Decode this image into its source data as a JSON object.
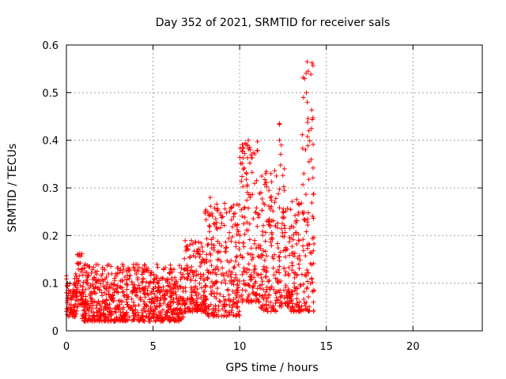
{
  "chart_data": {
    "type": "scatter",
    "title": "Day 352 of 2021, SRMTID for receiver sals",
    "xlabel": "GPS time / hours",
    "ylabel": "SRMTID / TECUs",
    "xlim": [
      0,
      24
    ],
    "ylim": [
      0,
      0.6
    ],
    "xticks": [
      0,
      5,
      10,
      15,
      20
    ],
    "xtick_labels": [
      "0",
      "5",
      "10",
      "15",
      "20"
    ],
    "yticks": [
      0,
      0.1,
      0.2,
      0.3,
      0.4,
      0.5,
      0.6
    ],
    "ytick_labels": [
      "0",
      "0.1",
      "0.2",
      "0.3",
      "0.4",
      "0.5",
      "0.6"
    ],
    "grid": true,
    "marker": "+",
    "color": "#ff0000",
    "series": [
      {
        "name": "SRMTID",
        "description_segments": [
          {
            "x_range": [
              0,
              0.6
            ],
            "y_range": [
              0.03,
              0.12
            ]
          },
          {
            "x_range": [
              0.6,
              0.9
            ],
            "y_range": [
              0.05,
              0.17
            ]
          },
          {
            "x_range": [
              0.9,
              6.8
            ],
            "y_range": [
              0.02,
              0.14
            ]
          },
          {
            "x_range": [
              6.8,
              8.0
            ],
            "y_range": [
              0.04,
              0.19
            ]
          },
          {
            "x_range": [
              8.0,
              10.0
            ],
            "y_range": [
              0.03,
              0.27
            ]
          },
          {
            "x_range": [
              10.0,
              11.2
            ],
            "y_range": [
              0.06,
              0.4
            ]
          },
          {
            "x_range": [
              11.2,
              12.2
            ],
            "y_range": [
              0.04,
              0.34
            ]
          },
          {
            "x_range": [
              12.2,
              12.6
            ],
            "y_range": [
              0.05,
              0.44
            ]
          },
          {
            "x_range": [
              12.6,
              13.6
            ],
            "y_range": [
              0.04,
              0.28
            ]
          },
          {
            "x_range": [
              13.6,
              14.3
            ],
            "y_range": [
              0.04,
              0.57
            ]
          }
        ],
        "highlights": [
          {
            "x": 8.0,
            "y": 0.25
          },
          {
            "x": 8.3,
            "y": 0.28
          },
          {
            "x": 10.5,
            "y": 0.4
          },
          {
            "x": 10.6,
            "y": 0.38
          },
          {
            "x": 10.4,
            "y": 0.33
          },
          {
            "x": 12.3,
            "y": 0.435
          },
          {
            "x": 12.3,
            "y": 0.4
          },
          {
            "x": 12.4,
            "y": 0.39
          },
          {
            "x": 11.8,
            "y": 0.33
          },
          {
            "x": 11.5,
            "y": 0.33
          },
          {
            "x": 13.9,
            "y": 0.565
          },
          {
            "x": 13.95,
            "y": 0.545
          },
          {
            "x": 13.85,
            "y": 0.5
          },
          {
            "x": 13.9,
            "y": 0.48
          },
          {
            "x": 14.0,
            "y": 0.42
          },
          {
            "x": 13.8,
            "y": 0.38
          },
          {
            "x": 14.0,
            "y": 0.355
          },
          {
            "x": 13.7,
            "y": 0.33
          }
        ]
      }
    ]
  }
}
